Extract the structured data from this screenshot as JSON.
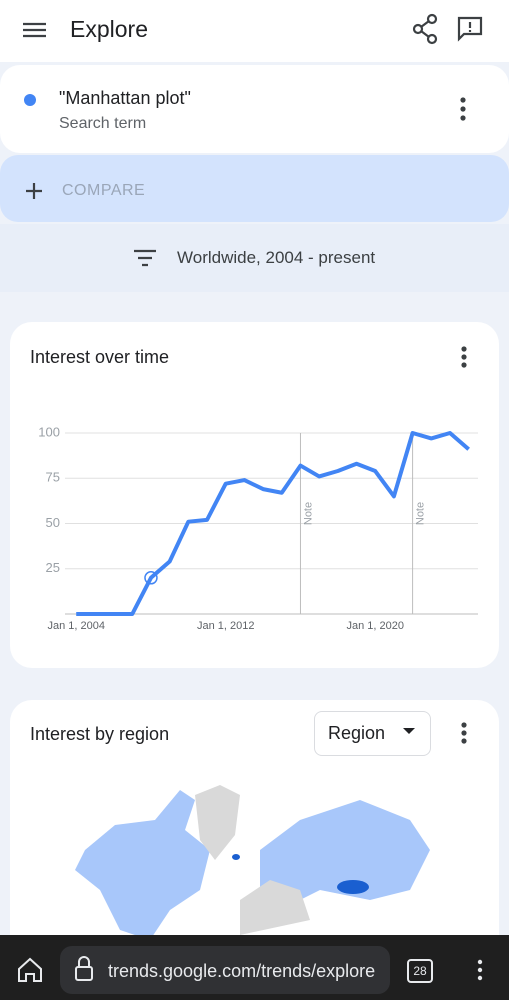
{
  "header": {
    "title": "Explore"
  },
  "search_term": {
    "name": "\"Manhattan plot\"",
    "subtitle": "Search term"
  },
  "compare": "COMPARE",
  "filter": "Worldwide, 2004 - present",
  "chart_data": {
    "type": "line",
    "title": "Interest over time",
    "x": [
      2004,
      2005,
      2006,
      2007,
      2008,
      2009,
      2010,
      2011,
      2012,
      2013,
      2014,
      2015,
      2016,
      2017,
      2018,
      2019,
      2020,
      2021,
      2022,
      2023,
      2024,
      2025
    ],
    "series": [
      {
        "name": "\"Manhattan plot\"",
        "color": "#4285f4",
        "values": [
          0,
          0,
          0,
          0,
          20,
          29,
          51,
          52,
          72,
          74,
          69,
          67,
          82,
          76,
          79,
          83,
          79,
          65,
          100,
          97,
          100,
          91
        ]
      }
    ],
    "xlim": [
      2003.4,
      2025.5
    ],
    "ylim": [
      0,
      100
    ],
    "yticks": [
      25,
      50,
      75,
      100
    ],
    "xticks": [
      {
        "value": 2004,
        "label": "Jan 1, 2004"
      },
      {
        "value": 2012,
        "label": "Jan 1, 2012"
      },
      {
        "value": 2020,
        "label": "Jan 1, 2020"
      }
    ],
    "grid": true,
    "annotations": [
      {
        "text": "Note",
        "x": 2016
      },
      {
        "text": "Note",
        "x": 2022
      }
    ]
  },
  "region": {
    "title": "Interest by region",
    "dropdown": "Region"
  },
  "browser": {
    "url": "trends.google.com/trends/explore",
    "tabs": "28"
  }
}
